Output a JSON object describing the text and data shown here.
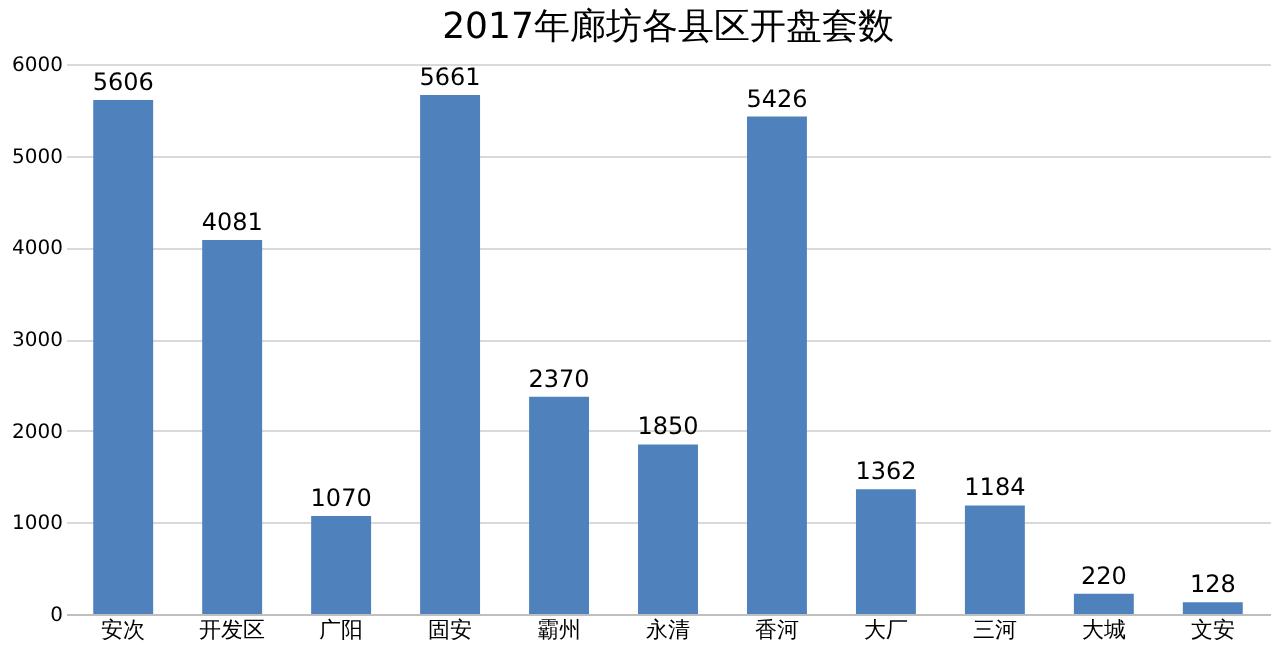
{
  "chart_data": {
    "type": "bar",
    "title": "2017年廊坊各县区开盘套数",
    "categories": [
      "安次",
      "开发区",
      "广阳",
      "固安",
      "霸州",
      "永清",
      "香河",
      "大厂",
      "三河",
      "大城",
      "文安"
    ],
    "values": [
      5606,
      4081,
      1070,
      5661,
      2370,
      1850,
      5426,
      1362,
      1184,
      220,
      128
    ],
    "color": "#4f81bd",
    "ylim": [
      0,
      6000
    ],
    "yticks": [
      0,
      1000,
      2000,
      3000,
      4000,
      5000,
      6000
    ],
    "grid": "y",
    "data_labels": true
  }
}
